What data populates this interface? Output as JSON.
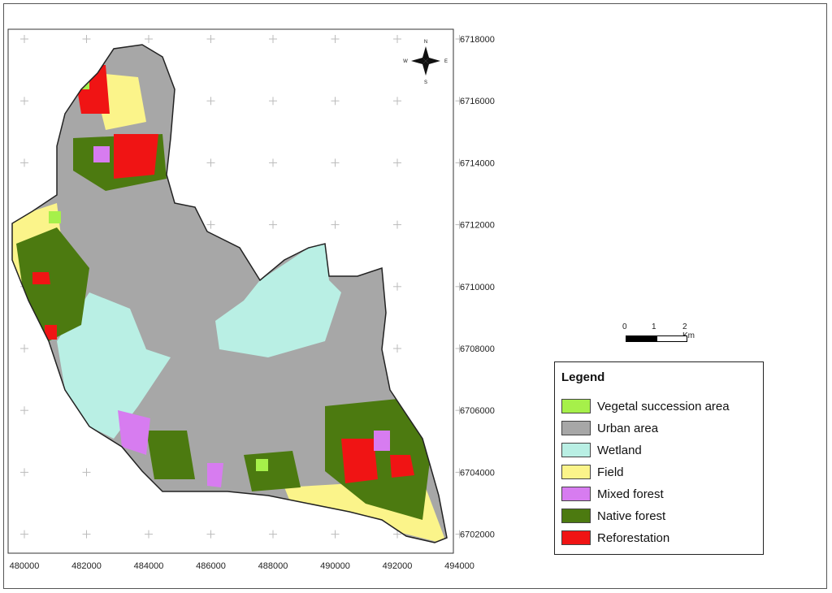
{
  "map": {
    "x_ticks": [
      "480000",
      "482000",
      "484000",
      "486000",
      "488000",
      "490000",
      "492000",
      "494000"
    ],
    "y_ticks": [
      "6718000",
      "6716000",
      "6714000",
      "6712000",
      "6710000",
      "6708000",
      "6706000",
      "6704000",
      "6702000"
    ]
  },
  "compass": {
    "north": "N",
    "south": "S",
    "east": "E",
    "west": "W"
  },
  "scale_bar": {
    "labels": [
      "0",
      "1",
      "2 Km"
    ]
  },
  "legend": {
    "title": "Legend",
    "items": [
      {
        "label": "Vegetal succession area",
        "color": "#a6f04a"
      },
      {
        "label": "Urban area",
        "color": "#a7a7a7"
      },
      {
        "label": "Wetland",
        "color": "#b9efe4"
      },
      {
        "label": "Field",
        "color": "#fbf48a"
      },
      {
        "label": "Mixed forest",
        "color": "#d77cf0"
      },
      {
        "label": "Native forest",
        "color": "#4c7a10"
      },
      {
        "label": "Reforestation",
        "color": "#f01414"
      }
    ]
  }
}
